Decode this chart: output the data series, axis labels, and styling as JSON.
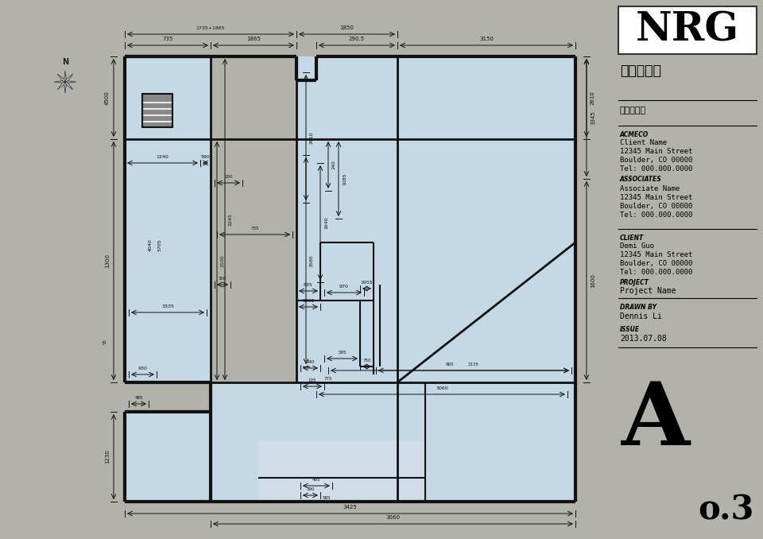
{
  "bg_color": "#b2b2aa",
  "right_panel_bg": "#ffffff",
  "floor_fill": "#c5d8e5",
  "wall_color": "#111111",
  "title_box_text": "NRG",
  "subtitle": "原始户型图",
  "unit_label": "单位：毫米",
  "acmeco_label": "ACMECO",
  "acmeco_info": "Client Name\n12345 Main Street\nBoulder, CO 00000\nTel: 000.000.0000",
  "associates_label": "ASSOCIATES",
  "associates_info": "Associate Name\n12345 Main Street\nBoulder, CO 00000\nTel: 000.000.0000",
  "client_label": "CLIENT",
  "client_info": "Demi Guo\n12345 Main Street\nBoulder, CO 00000\nTel: 000.000.0000",
  "project_label": "PROJECT",
  "project_info": "Project Name",
  "drawn_label": "DRAWN BY",
  "drawn_info": "Dennis Li",
  "issue_label": "ISSUE",
  "issue_info": "2013.07.08",
  "sheet_label": "A",
  "sheet_sub": "o.3",
  "panel_split": 0.802
}
